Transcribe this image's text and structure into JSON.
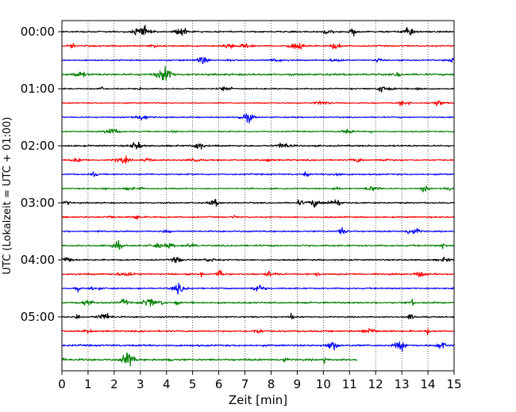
{
  "chart_data": {
    "type": "line",
    "title": "",
    "xlabel": "Zeit  [min]",
    "ylabel": "UTC (Lokalzeit = UTC + 01:00)",
    "xlim": [
      0,
      15
    ],
    "x_ticks": [
      0,
      1,
      2,
      3,
      4,
      5,
      6,
      7,
      8,
      9,
      10,
      11,
      12,
      13,
      14,
      15
    ],
    "y_tick_labels": [
      "00:00",
      "01:00",
      "02:00",
      "03:00",
      "04:00",
      "05:00"
    ],
    "y_tick_rows": [
      0,
      4,
      8,
      12,
      16,
      20
    ],
    "trace_interval_min": 15,
    "color_cycle": [
      "#000000",
      "#ff0000",
      "#0000ff",
      "#008000"
    ],
    "vertical_grid": "dotted",
    "rows": [
      {
        "start": "00:00",
        "color": "#000000",
        "end_min": 15,
        "amplitude": 0.45
      },
      {
        "start": "00:15",
        "color": "#ff0000",
        "end_min": 15,
        "amplitude": 0.4
      },
      {
        "start": "00:30",
        "color": "#0000ff",
        "end_min": 15,
        "amplitude": 0.35
      },
      {
        "start": "00:45",
        "color": "#008000",
        "end_min": 15,
        "amplitude": 0.55
      },
      {
        "start": "01:00",
        "color": "#000000",
        "end_min": 15,
        "amplitude": 0.35
      },
      {
        "start": "01:15",
        "color": "#ff0000",
        "end_min": 15,
        "amplitude": 0.3
      },
      {
        "start": "01:30",
        "color": "#0000ff",
        "end_min": 15,
        "amplitude": 0.35
      },
      {
        "start": "01:45",
        "color": "#008000",
        "end_min": 15,
        "amplitude": 0.35
      },
      {
        "start": "02:00",
        "color": "#000000",
        "end_min": 15,
        "amplitude": 0.45
      },
      {
        "start": "02:15",
        "color": "#ff0000",
        "end_min": 15,
        "amplitude": 0.4
      },
      {
        "start": "02:30",
        "color": "#0000ff",
        "end_min": 15,
        "amplitude": 0.4
      },
      {
        "start": "02:45",
        "color": "#008000",
        "end_min": 15,
        "amplitude": 0.35
      },
      {
        "start": "03:00",
        "color": "#000000",
        "end_min": 15,
        "amplitude": 0.4
      },
      {
        "start": "03:15",
        "color": "#ff0000",
        "end_min": 15,
        "amplitude": 0.4
      },
      {
        "start": "03:30",
        "color": "#0000ff",
        "end_min": 15,
        "amplitude": 0.4
      },
      {
        "start": "03:45",
        "color": "#008000",
        "end_min": 15,
        "amplitude": 0.45
      },
      {
        "start": "04:00",
        "color": "#000000",
        "end_min": 15,
        "amplitude": 0.4
      },
      {
        "start": "04:15",
        "color": "#ff0000",
        "end_min": 15,
        "amplitude": 0.45
      },
      {
        "start": "04:30",
        "color": "#0000ff",
        "end_min": 15,
        "amplitude": 0.4
      },
      {
        "start": "04:45",
        "color": "#008000",
        "end_min": 15,
        "amplitude": 0.45
      },
      {
        "start": "05:00",
        "color": "#000000",
        "end_min": 15,
        "amplitude": 0.4
      },
      {
        "start": "05:15",
        "color": "#ff0000",
        "end_min": 15,
        "amplitude": 0.45
      },
      {
        "start": "05:30",
        "color": "#0000ff",
        "end_min": 15,
        "amplitude": 0.5
      },
      {
        "start": "05:45",
        "color": "#008000",
        "end_min": 11.3,
        "amplitude": 0.55
      }
    ]
  }
}
